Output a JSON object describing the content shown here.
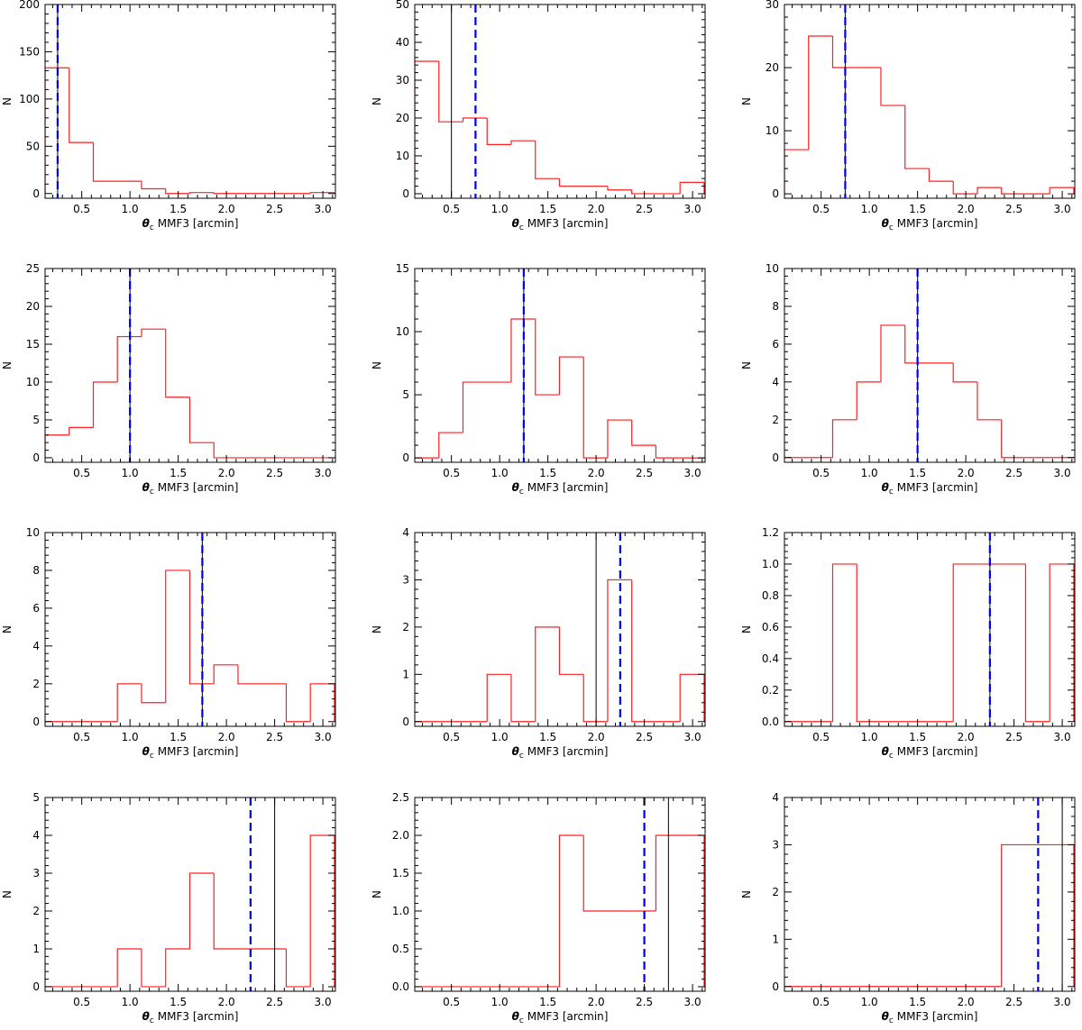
{
  "figure": {
    "ylabel": "N",
    "xlabel": "MMF3 [arcmin]",
    "xlabel_symbol": "θ",
    "xlabel_subscript": "c",
    "colors": {
      "histogram": "#ff2020",
      "dashed_line": "#0000ee",
      "solid_line": "#000000",
      "axes": "#000000"
    }
  },
  "chart_data": [
    {
      "type": "histogram",
      "xlabel": "θc MMF3 [arcmin]",
      "ylabel": "N",
      "xlim": [
        0.12,
        3.13
      ],
      "ylim": [
        -5,
        200
      ],
      "xticks": [
        0.5,
        1.0,
        1.5,
        2.0,
        2.5,
        3.0
      ],
      "xtick_labels": [
        "0.5",
        "1.0",
        "1.5",
        "2.0",
        "2.5",
        "3.0"
      ],
      "yticks": [
        0,
        50,
        100,
        150,
        200
      ],
      "ytick_labels": [
        "0",
        "50",
        "100",
        "150",
        "200"
      ],
      "bin_edges": [
        0.12,
        0.37,
        0.62,
        0.87,
        1.12,
        1.37,
        1.62,
        1.87,
        2.12,
        2.37,
        2.62,
        2.87,
        3.12
      ],
      "counts": [
        133,
        54,
        13,
        13,
        5,
        0,
        1,
        0,
        0,
        0,
        0,
        1
      ],
      "dashed_line_x": 0.25,
      "solid_line_x": 0.25
    },
    {
      "type": "histogram",
      "xlabel": "θc MMF3 [arcmin]",
      "ylabel": "N",
      "xlim": [
        0.12,
        3.13
      ],
      "ylim": [
        -1.2,
        50
      ],
      "xticks": [
        0.5,
        1.0,
        1.5,
        2.0,
        2.5,
        3.0
      ],
      "xtick_labels": [
        "0.5",
        "1.0",
        "1.5",
        "2.0",
        "2.5",
        "3.0"
      ],
      "yticks": [
        0,
        10,
        20,
        30,
        40,
        50
      ],
      "ytick_labels": [
        "0",
        "10",
        "20",
        "30",
        "40",
        "50"
      ],
      "bin_edges": [
        0.12,
        0.37,
        0.62,
        0.87,
        1.12,
        1.37,
        1.62,
        1.87,
        2.12,
        2.37,
        2.62,
        2.87,
        3.12
      ],
      "counts": [
        35,
        19,
        20,
        13,
        14,
        4,
        2,
        2,
        1,
        0,
        0,
        3
      ],
      "dashed_line_x": 0.75,
      "solid_line_x": 0.5
    },
    {
      "type": "histogram",
      "xlabel": "θc MMF3 [arcmin]",
      "ylabel": "N",
      "xlim": [
        0.12,
        3.13
      ],
      "ylim": [
        -0.7,
        30
      ],
      "xticks": [
        0.5,
        1.0,
        1.5,
        2.0,
        2.5,
        3.0
      ],
      "xtick_labels": [
        "0.5",
        "1.0",
        "1.5",
        "2.0",
        "2.5",
        "3.0"
      ],
      "yticks": [
        0,
        10,
        20,
        30
      ],
      "ytick_labels": [
        "0",
        "10",
        "20",
        "30"
      ],
      "bin_edges": [
        0.12,
        0.37,
        0.62,
        0.87,
        1.12,
        1.37,
        1.62,
        1.87,
        2.12,
        2.37,
        2.62,
        2.87,
        3.12
      ],
      "counts": [
        7,
        25,
        20,
        20,
        14,
        4,
        2,
        0,
        1,
        0,
        0,
        1
      ],
      "dashed_line_x": 0.75,
      "solid_line_x": 0.75
    },
    {
      "type": "histogram",
      "xlabel": "θc MMF3 [arcmin]",
      "ylabel": "N",
      "xlim": [
        0.12,
        3.13
      ],
      "ylim": [
        -0.6,
        25
      ],
      "xticks": [
        0.5,
        1.0,
        1.5,
        2.0,
        2.5,
        3.0
      ],
      "xtick_labels": [
        "0.5",
        "1.0",
        "1.5",
        "2.0",
        "2.5",
        "3.0"
      ],
      "yticks": [
        0,
        5,
        10,
        15,
        20,
        25
      ],
      "ytick_labels": [
        "0",
        "5",
        "10",
        "15",
        "20",
        "25"
      ],
      "bin_edges": [
        0.12,
        0.37,
        0.62,
        0.87,
        1.12,
        1.37,
        1.62,
        1.87,
        2.12,
        2.37,
        2.62,
        2.87,
        3.12
      ],
      "counts": [
        3,
        4,
        10,
        16,
        17,
        8,
        2,
        0,
        0,
        0,
        0,
        0
      ],
      "dashed_line_x": 1.0,
      "solid_line_x": 1.0
    },
    {
      "type": "histogram",
      "xlabel": "θc MMF3 [arcmin]",
      "ylabel": "N",
      "xlim": [
        0.12,
        3.13
      ],
      "ylim": [
        -0.35,
        15
      ],
      "xticks": [
        0.5,
        1.0,
        1.5,
        2.0,
        2.5,
        3.0
      ],
      "xtick_labels": [
        "0.5",
        "1.0",
        "1.5",
        "2.0",
        "2.5",
        "3.0"
      ],
      "yticks": [
        0,
        5,
        10,
        15
      ],
      "ytick_labels": [
        "0",
        "5",
        "10",
        "15"
      ],
      "bin_edges": [
        0.12,
        0.37,
        0.62,
        0.87,
        1.12,
        1.37,
        1.62,
        1.87,
        2.12,
        2.37,
        2.62,
        2.87,
        3.12
      ],
      "counts": [
        0,
        2,
        6,
        6,
        11,
        5,
        8,
        0,
        3,
        1,
        0,
        0
      ],
      "dashed_line_x": 1.25,
      "solid_line_x": 1.25
    },
    {
      "type": "histogram",
      "xlabel": "θc MMF3 [arcmin]",
      "ylabel": "N",
      "xlim": [
        0.12,
        3.13
      ],
      "ylim": [
        -0.25,
        10
      ],
      "xticks": [
        0.5,
        1.0,
        1.5,
        2.0,
        2.5,
        3.0
      ],
      "xtick_labels": [
        "0.5",
        "1.0",
        "1.5",
        "2.0",
        "2.5",
        "3.0"
      ],
      "yticks": [
        0,
        2,
        4,
        6,
        8,
        10
      ],
      "ytick_labels": [
        "0",
        "2",
        "4",
        "6",
        "8",
        "10"
      ],
      "bin_edges": [
        0.12,
        0.37,
        0.62,
        0.87,
        1.12,
        1.37,
        1.62,
        1.87,
        2.12,
        2.37,
        2.62,
        2.87,
        3.12
      ],
      "counts": [
        0,
        0,
        2,
        4,
        7,
        5,
        5,
        4,
        2,
        0,
        0,
        0
      ],
      "dashed_line_x": 1.5,
      "solid_line_x": 1.5
    },
    {
      "type": "histogram",
      "xlabel": "θc MMF3 [arcmin]",
      "ylabel": "N",
      "xlim": [
        0.12,
        3.13
      ],
      "ylim": [
        -0.25,
        10
      ],
      "xticks": [
        0.5,
        1.0,
        1.5,
        2.0,
        2.5,
        3.0
      ],
      "xtick_labels": [
        "0.5",
        "1.0",
        "1.5",
        "2.0",
        "2.5",
        "3.0"
      ],
      "yticks": [
        0,
        2,
        4,
        6,
        8,
        10
      ],
      "ytick_labels": [
        "0",
        "2",
        "4",
        "6",
        "8",
        "10"
      ],
      "bin_edges": [
        0.12,
        0.37,
        0.62,
        0.87,
        1.12,
        1.37,
        1.62,
        1.87,
        2.12,
        2.37,
        2.62,
        2.87,
        3.12
      ],
      "counts": [
        0,
        0,
        0,
        2,
        1,
        8,
        2,
        3,
        2,
        2,
        0,
        2
      ],
      "dashed_line_x": 1.75,
      "solid_line_x": 1.75
    },
    {
      "type": "histogram",
      "xlabel": "θc MMF3 [arcmin]",
      "ylabel": "N",
      "xlim": [
        0.12,
        3.13
      ],
      "ylim": [
        -0.1,
        4
      ],
      "xticks": [
        0.5,
        1.0,
        1.5,
        2.0,
        2.5,
        3.0
      ],
      "xtick_labels": [
        "0.5",
        "1.0",
        "1.5",
        "2.0",
        "2.5",
        "3.0"
      ],
      "yticks": [
        0,
        1,
        2,
        3,
        4
      ],
      "ytick_labels": [
        "0",
        "1",
        "2",
        "3",
        "4"
      ],
      "bin_edges": [
        0.12,
        0.37,
        0.62,
        0.87,
        1.12,
        1.37,
        1.62,
        1.87,
        2.12,
        2.37,
        2.62,
        2.87,
        3.12
      ],
      "counts": [
        0,
        0,
        0,
        1,
        0,
        2,
        1,
        0,
        3,
        0,
        0,
        1
      ],
      "dashed_line_x": 2.25,
      "solid_line_x": 2.0
    },
    {
      "type": "histogram",
      "xlabel": "θc MMF3 [arcmin]",
      "ylabel": "N",
      "xlim": [
        0.12,
        3.13
      ],
      "ylim": [
        -0.03,
        1.2
      ],
      "xticks": [
        0.5,
        1.0,
        1.5,
        2.0,
        2.5,
        3.0
      ],
      "xtick_labels": [
        "0.5",
        "1.0",
        "1.5",
        "2.0",
        "2.5",
        "3.0"
      ],
      "yticks": [
        0,
        0.2,
        0.4,
        0.6,
        0.8,
        1.0,
        1.2
      ],
      "ytick_labels": [
        "0.0",
        "0.2",
        "0.4",
        "0.6",
        "0.8",
        "1.0",
        "1.2"
      ],
      "bin_edges": [
        0.12,
        0.37,
        0.62,
        0.87,
        1.12,
        1.37,
        1.62,
        1.87,
        2.12,
        2.37,
        2.62,
        2.87,
        3.12
      ],
      "counts": [
        0,
        0,
        1,
        0,
        0,
        0,
        0,
        1,
        1,
        1,
        0,
        1
      ],
      "dashed_line_x": 2.25,
      "solid_line_x": 2.25
    },
    {
      "type": "histogram",
      "xlabel": "θc MMF3 [arcmin]",
      "ylabel": "N",
      "xlim": [
        0.12,
        3.13
      ],
      "ylim": [
        -0.12,
        5
      ],
      "xticks": [
        0.5,
        1.0,
        1.5,
        2.0,
        2.5,
        3.0
      ],
      "xtick_labels": [
        "0.5",
        "1.0",
        "1.5",
        "2.0",
        "2.5",
        "3.0"
      ],
      "yticks": [
        0,
        1,
        2,
        3,
        4,
        5
      ],
      "ytick_labels": [
        "0",
        "1",
        "2",
        "3",
        "4",
        "5"
      ],
      "bin_edges": [
        0.12,
        0.37,
        0.62,
        0.87,
        1.12,
        1.37,
        1.62,
        1.87,
        2.12,
        2.37,
        2.62,
        2.87,
        3.12
      ],
      "counts": [
        0,
        0,
        0,
        1,
        0,
        1,
        3,
        1,
        1,
        1,
        0,
        4
      ],
      "dashed_line_x": 2.25,
      "solid_line_x": 2.5
    },
    {
      "type": "histogram",
      "xlabel": "θc MMF3 [arcmin]",
      "ylabel": "N",
      "xlim": [
        0.12,
        3.13
      ],
      "ylim": [
        -0.06,
        2.5
      ],
      "xticks": [
        0.5,
        1.0,
        1.5,
        2.0,
        2.5,
        3.0
      ],
      "xtick_labels": [
        "0.5",
        "1.0",
        "1.5",
        "2.0",
        "2.5",
        "3.0"
      ],
      "yticks": [
        0,
        0.5,
        1.0,
        1.5,
        2.0,
        2.5
      ],
      "ytick_labels": [
        "0.0",
        "0.5",
        "1.0",
        "1.5",
        "2.0",
        "2.5"
      ],
      "bin_edges": [
        0.12,
        0.37,
        0.62,
        0.87,
        1.12,
        1.37,
        1.62,
        1.87,
        2.12,
        2.37,
        2.62,
        2.87,
        3.12
      ],
      "counts": [
        0,
        0,
        0,
        0,
        0,
        0,
        2,
        1,
        1,
        1,
        2,
        2
      ],
      "dashed_line_x": 2.5,
      "solid_line_x": 2.75
    },
    {
      "type": "histogram",
      "xlabel": "θc MMF3 [arcmin]",
      "ylabel": "N",
      "xlim": [
        0.12,
        3.13
      ],
      "ylim": [
        -0.1,
        4
      ],
      "xticks": [
        0.5,
        1.0,
        1.5,
        2.0,
        2.5,
        3.0
      ],
      "xtick_labels": [
        "0.5",
        "1.0",
        "1.5",
        "2.0",
        "2.5",
        "3.0"
      ],
      "yticks": [
        0,
        1,
        2,
        3,
        4
      ],
      "ytick_labels": [
        "0",
        "1",
        "2",
        "3",
        "4"
      ],
      "bin_edges": [
        0.12,
        0.37,
        0.62,
        0.87,
        1.12,
        1.37,
        1.62,
        1.87,
        2.12,
        2.37,
        2.62,
        2.87,
        3.12
      ],
      "counts": [
        0,
        0,
        0,
        0,
        0,
        0,
        0,
        0,
        0,
        3,
        3,
        3
      ],
      "dashed_line_x": 2.75,
      "solid_line_x": 3.0
    }
  ]
}
